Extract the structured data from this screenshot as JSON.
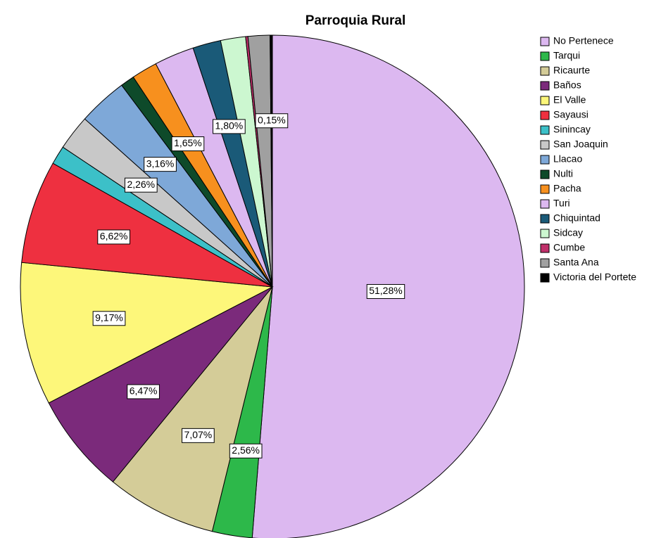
{
  "chart_data": {
    "type": "pie",
    "title": "Parroquia Rural",
    "categories": [
      "No Pertenece",
      "Tarqui",
      "Ricaurte",
      "Baños",
      "El Valle",
      "Sayausi",
      "Sinincay",
      "San Joaquin",
      "Llacao",
      "Nulti",
      "Pacha",
      "Turi",
      "Chiquintad",
      "Sidcay",
      "Cumbe",
      "Santa Ana",
      "Victoria del Portete"
    ],
    "values": [
      51.28,
      2.56,
      7.07,
      6.47,
      9.17,
      6.62,
      1.2,
      2.26,
      3.16,
      0.9,
      1.65,
      2.56,
      1.8,
      1.6,
      0.15,
      1.4,
      0.15
    ],
    "value_labels": [
      "51,28%",
      "2,56%",
      "7,07%",
      "6,47%",
      "9,17%",
      "6,62%",
      null,
      "2,26%",
      "3,16%",
      null,
      "1,65%",
      null,
      "1,80%",
      null,
      null,
      null,
      "0,15%"
    ],
    "colors": [
      "#dcb8f0",
      "#2db84a",
      "#d4cc98",
      "#7b2a7b",
      "#fdf77a",
      "#ee3040",
      "#3cc0c8",
      "#c8c8c8",
      "#7ea8d8",
      "#0e4a2a",
      "#f7901e",
      "#dcb8f0",
      "#1a5a78",
      "#ccf7d0",
      "#c0306a",
      "#a0a0a0",
      "#000000"
    ],
    "legend": "right"
  }
}
